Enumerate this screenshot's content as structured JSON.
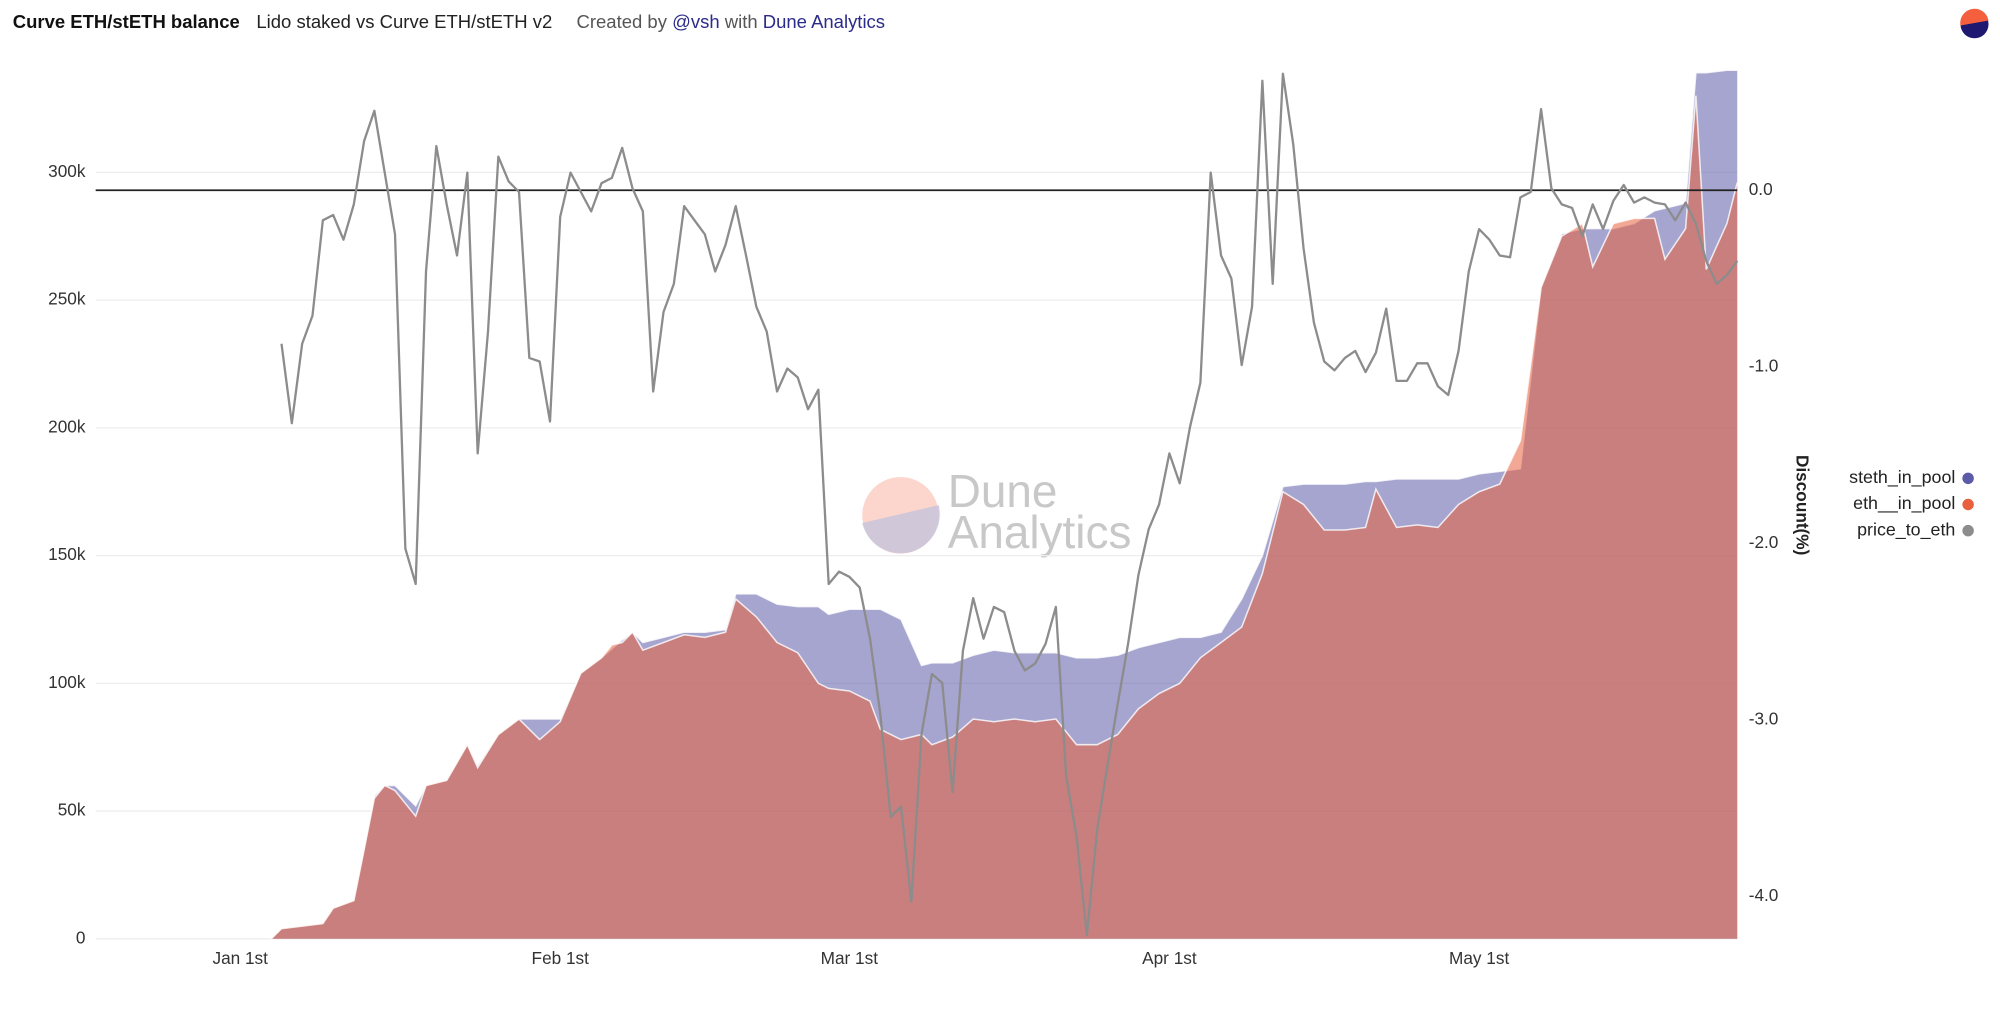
{
  "header": {
    "title": "Curve ETH/stETH balance",
    "subtitle": "Lido staked vs Curve ETH/stETH v2",
    "created_by": "Created by",
    "author": "@vsh",
    "with": "with",
    "platform": "Dune Analytics"
  },
  "chart_data": {
    "type": "area_line",
    "watermark": [
      "Dune",
      "Analytics"
    ],
    "y2label": "Discount(%)",
    "xlim": [
      -14,
      145
    ],
    "xticks": [
      {
        "value": 0,
        "label": "Jan 1st"
      },
      {
        "value": 31,
        "label": "Feb 1st"
      },
      {
        "value": 59,
        "label": "Mar 1st"
      },
      {
        "value": 90,
        "label": "Apr 1st"
      },
      {
        "value": 120,
        "label": "May 1st"
      }
    ],
    "ylim": [
      0,
      340000
    ],
    "yticks": [
      0,
      {
        "value": 50000,
        "label": "50k"
      },
      {
        "value": 100000,
        "label": "100k"
      },
      {
        "value": 150000,
        "label": "150k"
      },
      {
        "value": 200000,
        "label": "200k"
      },
      {
        "value": 250000,
        "label": "250k"
      },
      {
        "value": 300000,
        "label": "300k"
      }
    ],
    "y2lim": [
      -4.24,
      0.68
    ],
    "y2ticks": [
      {
        "value": 0,
        "label": "0.0"
      },
      {
        "value": -1,
        "label": "-1.0"
      },
      {
        "value": -2,
        "label": "-2.0"
      },
      {
        "value": -3,
        "label": "-3.0"
      },
      {
        "value": -4,
        "label": "-4.0"
      }
    ],
    "grid": true,
    "reference_lines": [
      {
        "axis": "y2",
        "value": 0,
        "color": "#222"
      }
    ],
    "legend": "right",
    "series": [
      {
        "name": "steth_in_pool",
        "color": "#5b5ba8",
        "kind": "area",
        "x": [
          3,
          4,
          6,
          8,
          9,
          11,
          12,
          13,
          14,
          15,
          17,
          18,
          20,
          22,
          23,
          25,
          27,
          29,
          31,
          33,
          35,
          37,
          38,
          39,
          41,
          43,
          45,
          47,
          48,
          50,
          52,
          54,
          56,
          57,
          59,
          61,
          62,
          64,
          66,
          67,
          69,
          71,
          73,
          75,
          77,
          79,
          81,
          83,
          85,
          87,
          89,
          91,
          93,
          95,
          97,
          99,
          101,
          103,
          105,
          107,
          109,
          110,
          112,
          114,
          116,
          118,
          120,
          122,
          124,
          126,
          128,
          130,
          131,
          133,
          135,
          137,
          138,
          140,
          141,
          142,
          144,
          145
        ],
        "values": [
          0,
          4000,
          5000,
          6000,
          12000,
          15000,
          35000,
          56000,
          60000,
          60000,
          52000,
          60000,
          62000,
          76000,
          68000,
          80000,
          86000,
          86000,
          86000,
          104000,
          110000,
          117000,
          120000,
          116000,
          118000,
          120000,
          120000,
          121000,
          135000,
          135000,
          131000,
          130000,
          130000,
          127000,
          129000,
          129000,
          129000,
          125000,
          107000,
          108000,
          108000,
          111000,
          113000,
          112000,
          112000,
          112000,
          110000,
          110000,
          111000,
          114000,
          116000,
          118000,
          118000,
          120000,
          133000,
          150000,
          177000,
          178000,
          178000,
          178000,
          179000,
          179000,
          180000,
          180000,
          180000,
          180000,
          182000,
          183000,
          184000,
          255000,
          276000,
          278000,
          278000,
          278000,
          280000,
          285000,
          286000,
          288000,
          339000,
          339000,
          340000,
          340000
        ]
      },
      {
        "name": "eth__in_pool",
        "color": "#e8603c",
        "kind": "area",
        "x": [
          3,
          4,
          6,
          8,
          9,
          11,
          12,
          13,
          14,
          15,
          17,
          18,
          20,
          22,
          23,
          25,
          27,
          29,
          31,
          33,
          35,
          36,
          37,
          38,
          39,
          41,
          43,
          45,
          47,
          48,
          50,
          52,
          54,
          56,
          57,
          59,
          61,
          62,
          64,
          66,
          67,
          69,
          71,
          73,
          75,
          77,
          79,
          81,
          83,
          85,
          87,
          89,
          91,
          93,
          95,
          97,
          99,
          101,
          103,
          105,
          107,
          109,
          110,
          112,
          114,
          116,
          118,
          120,
          122,
          124,
          126,
          128,
          130,
          131,
          133,
          135,
          137,
          138,
          140,
          141,
          142,
          144,
          145
        ],
        "values": [
          0,
          4000,
          5000,
          6000,
          12000,
          15000,
          35000,
          55000,
          60000,
          58000,
          48000,
          60000,
          62000,
          76000,
          67000,
          80000,
          86000,
          78000,
          85000,
          104000,
          110000,
          115000,
          116000,
          120000,
          113000,
          116000,
          119000,
          118000,
          120000,
          133000,
          126000,
          116000,
          112000,
          100000,
          98000,
          97000,
          93000,
          82000,
          78000,
          80000,
          76000,
          79000,
          86000,
          85000,
          86000,
          85000,
          86000,
          76000,
          76000,
          80000,
          90000,
          96000,
          100000,
          110000,
          116000,
          122000,
          143000,
          175000,
          170000,
          160000,
          160000,
          161000,
          176000,
          161000,
          162000,
          161000,
          170000,
          175000,
          178000,
          195000,
          255000,
          275000,
          280000,
          263000,
          280000,
          282000,
          282000,
          266000,
          278000,
          330000,
          262000,
          280000,
          296000
        ]
      },
      {
        "name": "price_to_eth",
        "color": "#8c8c8c",
        "kind": "line",
        "axis": "y2",
        "x": [
          4,
          5,
          6,
          7,
          8,
          9,
          10,
          11,
          12,
          13,
          14,
          15,
          16,
          17,
          18,
          19,
          20,
          21,
          22,
          23,
          24,
          25,
          26,
          27,
          28,
          29,
          30,
          31,
          32,
          33,
          34,
          35,
          36,
          37,
          38,
          39,
          40,
          41,
          42,
          43,
          44,
          45,
          46,
          47,
          48,
          49,
          50,
          51,
          52,
          53,
          54,
          55,
          56,
          57,
          58,
          59,
          60,
          61,
          62,
          63,
          64,
          65,
          66,
          67,
          68,
          69,
          70,
          71,
          72,
          73,
          74,
          75,
          76,
          77,
          78,
          79,
          80,
          81,
          82,
          83,
          84,
          85,
          86,
          87,
          88,
          89,
          90,
          91,
          92,
          93,
          94,
          95,
          96,
          97,
          98,
          99,
          100,
          101,
          102,
          103,
          104,
          105,
          106,
          107,
          108,
          109,
          110,
          111,
          112,
          113,
          114,
          115,
          116,
          117,
          118,
          119,
          120,
          121,
          122,
          123,
          124,
          125,
          126,
          127,
          128,
          129,
          130,
          131,
          132,
          133,
          134,
          135,
          136,
          137,
          138,
          139,
          140,
          141,
          142,
          143,
          144,
          145
        ],
        "values": [
          -0.87,
          -1.32,
          -0.87,
          -0.71,
          -0.17,
          -0.14,
          -0.28,
          -0.08,
          0.28,
          0.45,
          0.1,
          -0.25,
          -2.03,
          -2.23,
          -0.46,
          0.25,
          -0.08,
          -0.37,
          0.1,
          -1.49,
          -0.8,
          0.19,
          0.05,
          -0.01,
          -0.95,
          -0.97,
          -1.31,
          -0.15,
          0.1,
          -0.01,
          -0.12,
          0.04,
          0.07,
          0.24,
          0.01,
          -0.12,
          -1.14,
          -0.69,
          -0.53,
          -0.09,
          -0.17,
          -0.25,
          -0.46,
          -0.31,
          -0.09,
          -0.37,
          -0.66,
          -0.8,
          -1.14,
          -1.01,
          -1.06,
          -1.24,
          -1.13,
          -2.23,
          -2.16,
          -2.19,
          -2.25,
          -2.54,
          -2.97,
          -3.55,
          -3.49,
          -4.03,
          -3.08,
          -2.74,
          -2.79,
          -3.41,
          -2.61,
          -2.31,
          -2.54,
          -2.36,
          -2.39,
          -2.61,
          -2.72,
          -2.68,
          -2.57,
          -2.36,
          -3.32,
          -3.66,
          -4.22,
          -3.62,
          -3.26,
          -2.91,
          -2.57,
          -2.18,
          -1.92,
          -1.78,
          -1.49,
          -1.66,
          -1.34,
          -1.09,
          0.1,
          -0.37,
          -0.5,
          -0.99,
          -0.66,
          0.62,
          -0.53,
          0.66,
          0.26,
          -0.33,
          -0.75,
          -0.97,
          -1.02,
          -0.95,
          -0.91,
          -1.03,
          -0.92,
          -0.67,
          -1.08,
          -1.08,
          -0.98,
          -0.98,
          -1.11,
          -1.16,
          -0.91,
          -0.46,
          -0.22,
          -0.28,
          -0.37,
          -0.38,
          -0.04,
          -0.01,
          0.46,
          0.01,
          -0.08,
          -0.1,
          -0.26,
          -0.08,
          -0.22,
          -0.06,
          0.03,
          -0.07,
          -0.04,
          -0.07,
          -0.08,
          -0.17,
          -0.07,
          -0.19,
          -0.4,
          -0.53,
          -0.48,
          -0.4
        ]
      }
    ]
  }
}
